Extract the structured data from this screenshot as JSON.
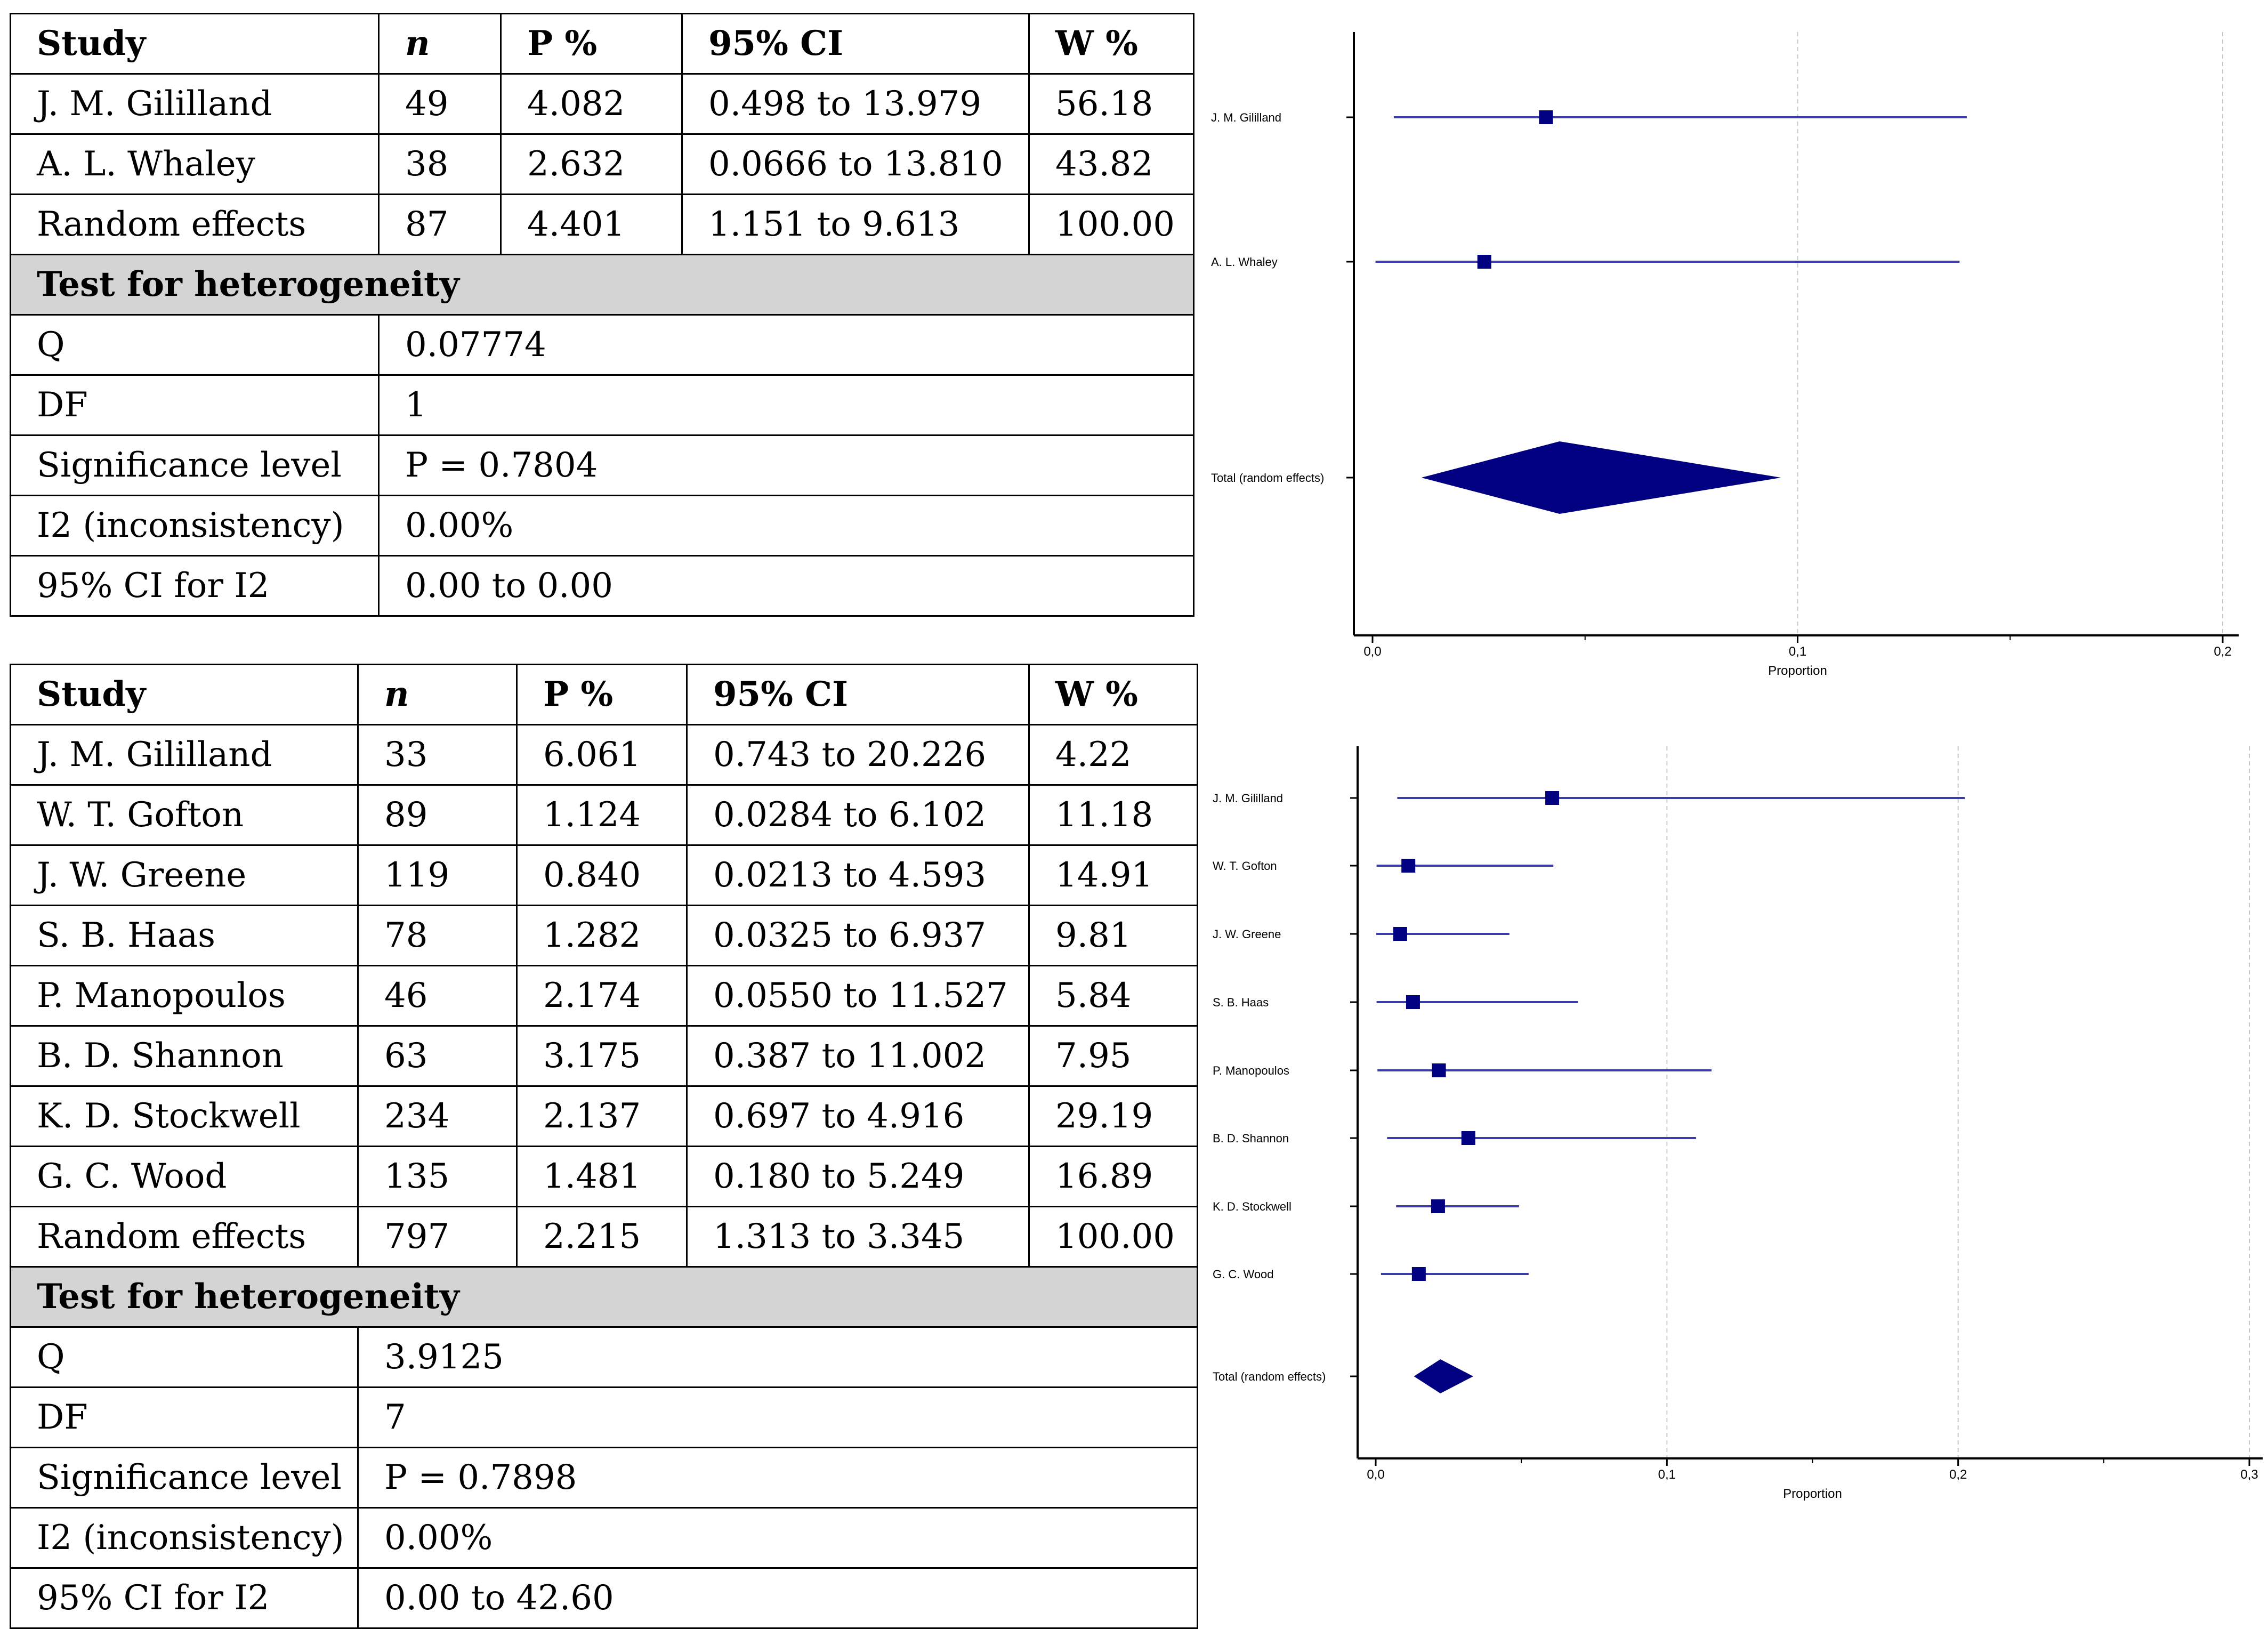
{
  "colors": {
    "marker": "#000080",
    "ci_line": "#3c3ca8",
    "grid": "#c8c8c8",
    "band": "#d4d4d4"
  },
  "table1": {
    "headers": [
      "Study",
      "n",
      "P %",
      "95% CI",
      "W %"
    ],
    "rows": [
      [
        "J. M. Gililland",
        "49",
        "4.082",
        "0.498 to 13.979",
        "56.18"
      ],
      [
        "A. L. Whaley",
        "38",
        "2.632",
        "0.0666 to 13.810",
        "43.82"
      ],
      [
        "Random effects",
        "87",
        "4.401",
        "1.151 to 9.613",
        "100.00"
      ]
    ],
    "heterogeneity_title": "Test for heterogeneity",
    "heterogeneity": [
      [
        "Q",
        "0.07774"
      ],
      [
        "DF",
        "1"
      ],
      [
        "Significance level",
        "P = 0.7804"
      ],
      [
        "I2 (inconsistency)",
        "0.00%"
      ],
      [
        "95% CI for I2",
        "0.00 to 0.00"
      ]
    ]
  },
  "table2": {
    "headers": [
      "Study",
      "n",
      "P %",
      "95% CI",
      "W %"
    ],
    "rows": [
      [
        "J. M. Gililland",
        "33",
        "6.061",
        "0.743 to 20.226",
        "4.22"
      ],
      [
        "W. T. Gofton",
        "89",
        "1.124",
        "0.0284 to 6.102",
        "11.18"
      ],
      [
        "J. W. Greene",
        "119",
        "0.840",
        "0.0213 to 4.593",
        "14.91"
      ],
      [
        "S. B. Haas",
        "78",
        "1.282",
        "0.0325 to 6.937",
        "9.81"
      ],
      [
        "P. Manopoulos",
        "46",
        "2.174",
        "0.0550 to 11.527",
        "5.84"
      ],
      [
        "B. D. Shannon",
        "63",
        "3.175",
        "0.387 to 11.002",
        "7.95"
      ],
      [
        "K. D. Stockwell",
        "234",
        "2.137",
        "0.697 to 4.916",
        "29.19"
      ],
      [
        "G. C. Wood",
        "135",
        "1.481",
        "0.180 to 5.249",
        "16.89"
      ],
      [
        "Random effects",
        "797",
        "2.215",
        "1.313 to 3.345",
        "100.00"
      ]
    ],
    "heterogeneity_title": "Test for heterogeneity",
    "heterogeneity": [
      [
        "Q",
        "3.9125"
      ],
      [
        "DF",
        "7"
      ],
      [
        "Significance level",
        "P = 0.7898"
      ],
      [
        "I2 (inconsistency)",
        "0.00%"
      ],
      [
        "95% CI for I2",
        "0.00 to 42.60"
      ]
    ]
  },
  "chart_data": [
    {
      "type": "forest",
      "xlabel": "Proportion",
      "xlim": [
        0,
        0.2
      ],
      "ticks": [
        0,
        0.1,
        0.2
      ],
      "tick_labels": [
        "0,0",
        "0,1",
        "0,2"
      ],
      "grid": true,
      "studies": [
        {
          "label": "J. M. Gililland",
          "est": 0.0408,
          "lo": 0.005,
          "hi": 0.1398,
          "weight": 56.18
        },
        {
          "label": "A. L. Whaley",
          "est": 0.0263,
          "lo": 0.0007,
          "hi": 0.1381,
          "weight": 43.82
        }
      ],
      "total": {
        "label": "Total (random effects)",
        "est": 0.044,
        "lo": 0.0115,
        "hi": 0.0961
      }
    },
    {
      "type": "forest",
      "xlabel": "Proportion",
      "xlim": [
        0,
        0.3
      ],
      "ticks": [
        0,
        0.1,
        0.2,
        0.3
      ],
      "tick_labels": [
        "0,0",
        "0,1",
        "0,2",
        "0,3"
      ],
      "grid": true,
      "studies": [
        {
          "label": "J. M. Gililland",
          "est": 0.0606,
          "lo": 0.0074,
          "hi": 0.2023,
          "weight": 4.22
        },
        {
          "label": "W. T. Gofton",
          "est": 0.0112,
          "lo": 0.0003,
          "hi": 0.061,
          "weight": 11.18
        },
        {
          "label": "J. W. Greene",
          "est": 0.0084,
          "lo": 0.0002,
          "hi": 0.0459,
          "weight": 14.91
        },
        {
          "label": "S. B. Haas",
          "est": 0.0128,
          "lo": 0.0003,
          "hi": 0.0694,
          "weight": 9.81
        },
        {
          "label": "P. Manopoulos",
          "est": 0.0217,
          "lo": 0.0006,
          "hi": 0.1153,
          "weight": 5.84
        },
        {
          "label": "B. D. Shannon",
          "est": 0.0318,
          "lo": 0.0039,
          "hi": 0.11,
          "weight": 7.95
        },
        {
          "label": "K. D. Stockwell",
          "est": 0.0214,
          "lo": 0.007,
          "hi": 0.0492,
          "weight": 29.19
        },
        {
          "label": "G. C. Wood",
          "est": 0.0148,
          "lo": 0.0018,
          "hi": 0.0525,
          "weight": 16.89
        }
      ],
      "total": {
        "label": "Total (random effects)",
        "est": 0.0222,
        "lo": 0.0131,
        "hi": 0.0335
      }
    }
  ]
}
